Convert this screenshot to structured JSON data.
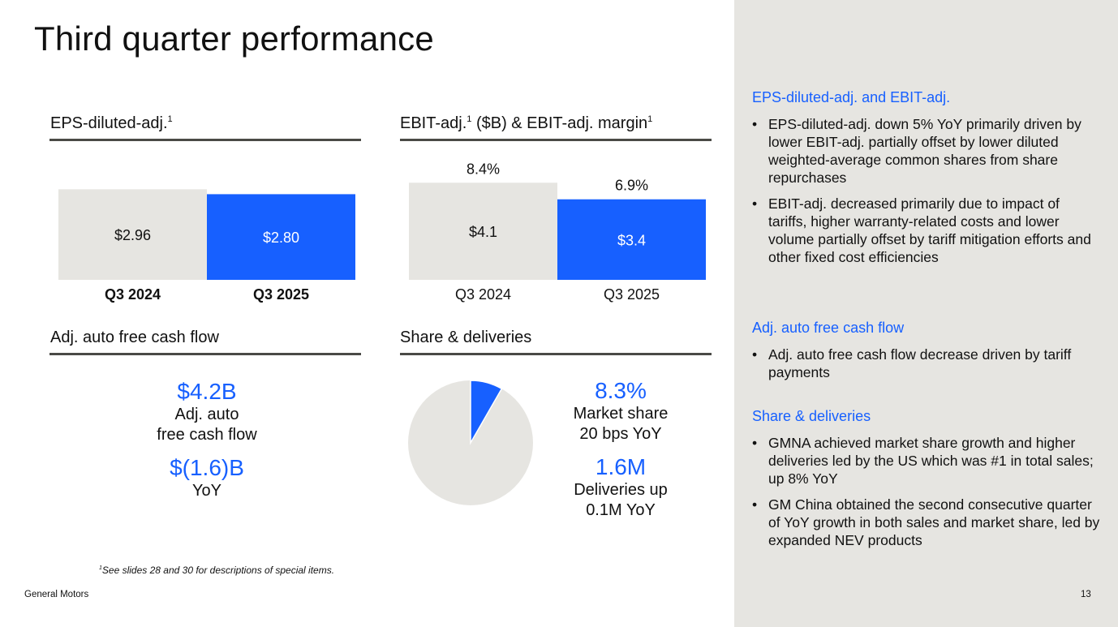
{
  "page": {
    "title": "Third quarter performance",
    "footnote_marker": "1",
    "footnote": "See slides 28 and 30 for descriptions of special items.",
    "footer_company": "General Motors",
    "page_number": "13"
  },
  "colors": {
    "accent": "#1760ff",
    "neutral_bar": "#e6e5e1",
    "sidebar_bg": "#e6e5e1"
  },
  "chart_data": [
    {
      "type": "bar",
      "title": "EPS-diluted-adj.",
      "title_sup": "1",
      "categories": [
        "Q3 2024",
        "Q3 2025"
      ],
      "values": [
        2.96,
        2.8
      ],
      "data_labels": [
        "$2.96",
        "$2.80"
      ],
      "colors": [
        "#e6e5e1",
        "#1760ff"
      ],
      "ylim": [
        0,
        3.5
      ]
    },
    {
      "type": "bar",
      "title": "EBIT-adj.",
      "title_sup": "1",
      "title_mid": " ($B) & EBIT-adj. margin",
      "title_sup2": "1",
      "categories": [
        "Q3 2024",
        "Q3 2025"
      ],
      "values": [
        4.1,
        3.4
      ],
      "data_labels": [
        "$4.1",
        "$3.4"
      ],
      "margins": [
        "8.4%",
        "6.9%"
      ],
      "colors": [
        "#e6e5e1",
        "#1760ff"
      ],
      "ylim": [
        0,
        5
      ]
    },
    {
      "type": "pie",
      "title": "Share & deliveries",
      "slices": [
        {
          "name": "GM market share",
          "value": 8.3,
          "color": "#1760ff"
        },
        {
          "name": "Other",
          "value": 91.7,
          "color": "#e6e5e1"
        }
      ]
    }
  ],
  "cash_flow": {
    "title": "Adj. auto free cash flow",
    "value": "$4.2B",
    "label_line1": "Adj. auto",
    "label_line2": "free cash flow",
    "yoy_value": "$(1.6)B",
    "yoy_label": "YoY"
  },
  "share": {
    "share_value": "8.3%",
    "share_line1": "Market share",
    "share_line2": "20 bps YoY",
    "deliveries_value": "1.6M",
    "deliveries_line1": "Deliveries up",
    "deliveries_line2": "0.1M YoY"
  },
  "sidebar": {
    "sections": [
      {
        "heading": "EPS-diluted-adj. and EBIT-adj.",
        "bullets": [
          "EPS-diluted-adj. down 5% YoY primarily driven by lower EBIT-adj. partially offset by lower diluted weighted-average common shares from share repurchases",
          "EBIT-adj. decreased primarily due to impact of tariffs, higher warranty-related costs and lower volume partially offset by tariff mitigation efforts and other fixed cost efficiencies"
        ]
      },
      {
        "heading": "Adj. auto free cash flow",
        "bullets": [
          "Adj. auto free cash flow decrease driven by tariff payments"
        ]
      },
      {
        "heading": "Share & deliveries",
        "bullets": [
          "GMNA achieved market share growth and higher deliveries led by the US which was #1 in total sales; up 8% YoY",
          "GM China obtained the second consecutive quarter of YoY growth in both sales and market share, led by expanded NEV products"
        ]
      }
    ],
    "bullet_glyph": "•"
  }
}
